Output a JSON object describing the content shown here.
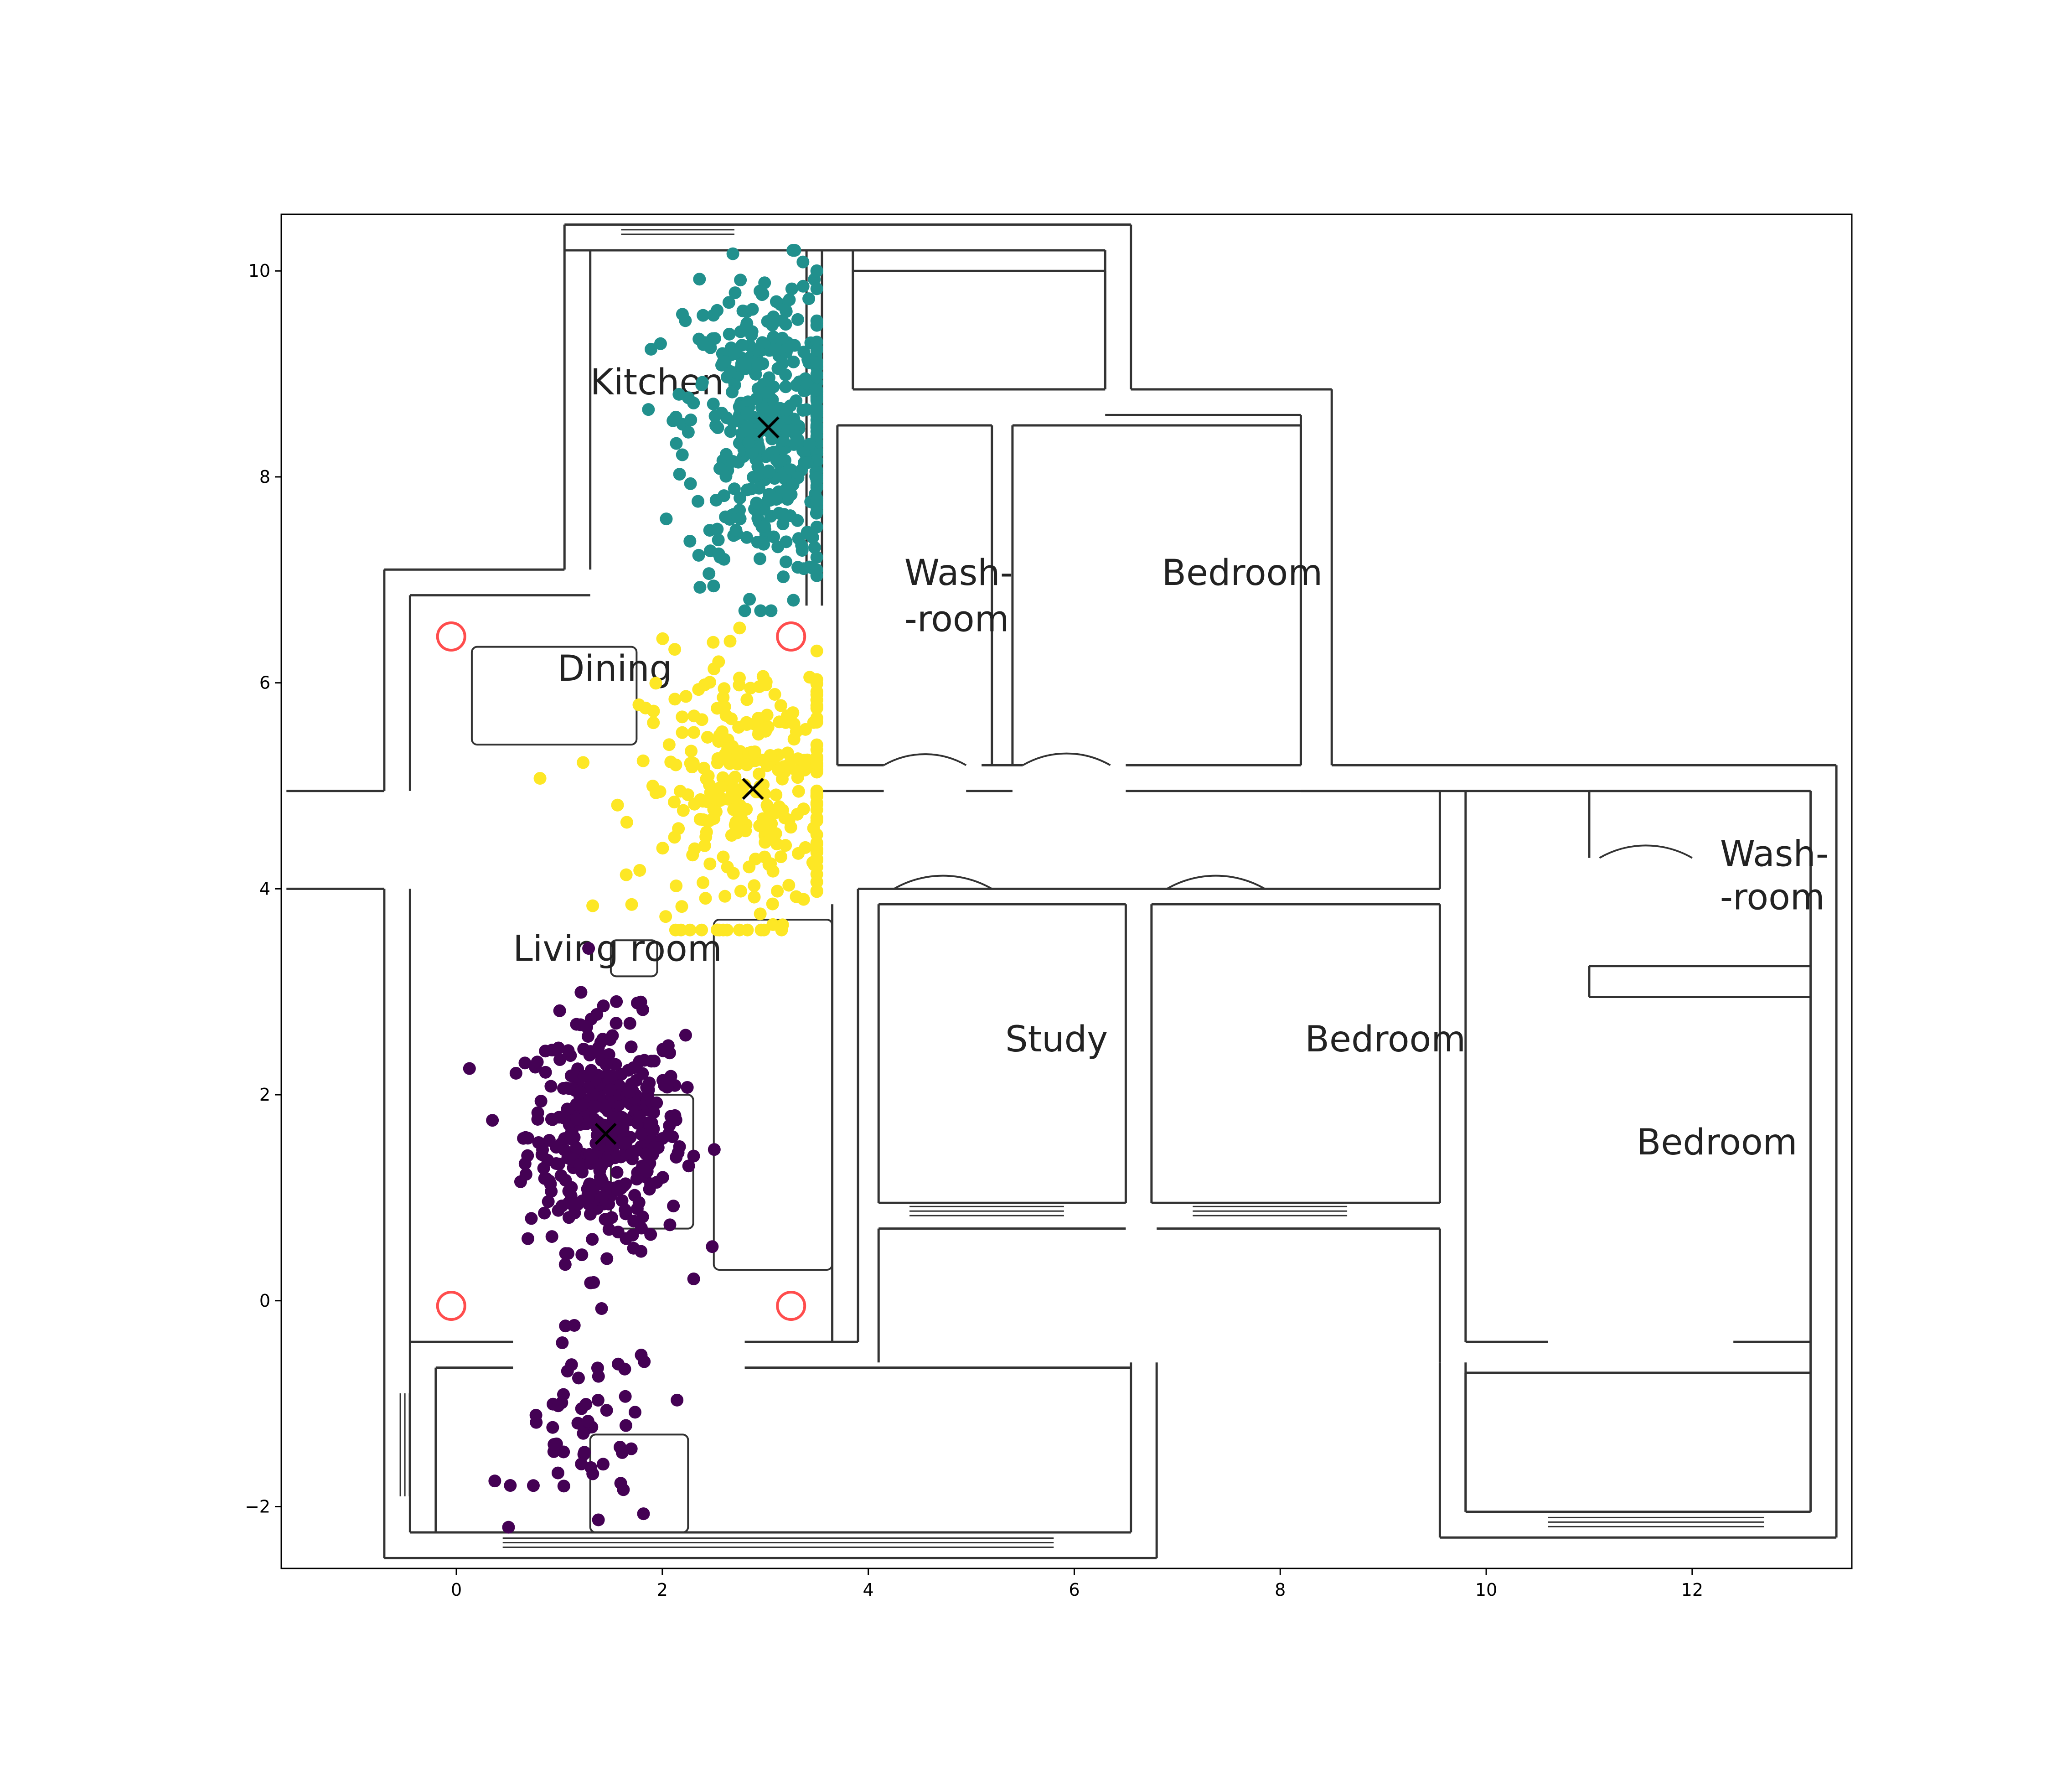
{
  "chart_data": {
    "type": "scatter",
    "title": "",
    "xlabel": "",
    "ylabel": "",
    "xlim": [
      -1.7,
      13.55
    ],
    "ylim": [
      -2.6,
      10.55
    ],
    "xticks": [
      0,
      2,
      4,
      6,
      8,
      10,
      12
    ],
    "yticks": [
      -2,
      0,
      2,
      4,
      6,
      8,
      10
    ],
    "grid": false,
    "legend": "none",
    "background": "floor plan",
    "room_labels": [
      {
        "text": "Kitchen",
        "x": 1.3,
        "y": 8.8
      },
      {
        "text": "Dining",
        "x": 0.98,
        "y": 6.02
      },
      {
        "text": "Living room",
        "x": 0.55,
        "y": 3.3
      },
      {
        "text": "Wash-",
        "x": 4.35,
        "y": 6.95
      },
      {
        "text": "-room",
        "x": 4.35,
        "y": 6.5
      },
      {
        "text": "Bedroom",
        "x": 6.85,
        "y": 6.95
      },
      {
        "text": "Study",
        "x": 5.33,
        "y": 2.42
      },
      {
        "text": "Bedroom",
        "x": 8.24,
        "y": 2.42
      },
      {
        "text": "Wash-",
        "x": 12.27,
        "y": 4.22
      },
      {
        "text": "-room",
        "x": 12.27,
        "y": 3.8
      },
      {
        "text": "Bedroom",
        "x": 11.46,
        "y": 1.42
      }
    ],
    "anchors": [
      {
        "x": -0.05,
        "y": 6.45
      },
      {
        "x": 3.25,
        "y": 6.45
      },
      {
        "x": -0.05,
        "y": -0.05
      },
      {
        "x": 3.25,
        "y": -0.05
      }
    ],
    "series": [
      {
        "color": "#440154",
        "center": [
          1.45,
          1.62
        ],
        "count": 460
      },
      {
        "color": "#21908d",
        "center": [
          3.03,
          8.48
        ],
        "count": 430
      },
      {
        "color": "#fde725",
        "center": [
          2.88,
          4.97
        ],
        "count": 300
      }
    ],
    "colors": {
      "anchor": "#ff4d4d",
      "wall": "#333333",
      "centroid_marker": "#000000"
    }
  }
}
